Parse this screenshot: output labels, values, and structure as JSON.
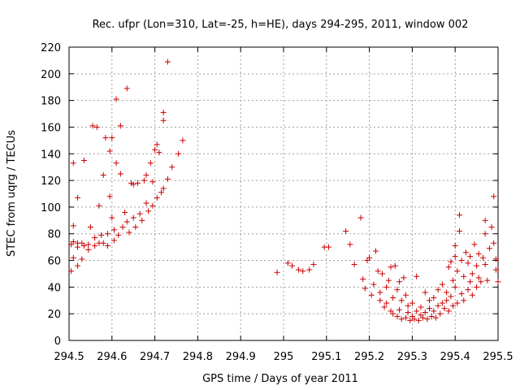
{
  "chart_data": {
    "type": "scatter",
    "title": "Rec. ufpr (Lon=310, Lat=-25, h=HE), days 294-295, 2011, window 002",
    "xlabel": "GPS time / Days of year 2011",
    "ylabel": "STEC from uqrg / TECUs",
    "xlim": [
      294.5,
      295.5
    ],
    "ylim": [
      0,
      220
    ],
    "xticks": [
      294.5,
      294.6,
      294.7,
      294.8,
      294.9,
      295,
      295.1,
      295.2,
      295.3,
      295.4,
      295.5
    ],
    "xtick_labels": [
      "294.5",
      "294.6",
      "294.7",
      "294.8",
      "294.9",
      "295",
      "295.1",
      "295.2",
      "295.3",
      "295.4",
      "295.5"
    ],
    "yticks": [
      0,
      20,
      40,
      60,
      80,
      100,
      120,
      140,
      160,
      180,
      200,
      220
    ],
    "ytick_labels": [
      "0",
      "20",
      "40",
      "60",
      "80",
      "100",
      "120",
      "140",
      "160",
      "180",
      "200",
      "220"
    ],
    "grid": true,
    "marker": "+",
    "color": "#cc0000",
    "series": [
      {
        "points": [
          [
            294.505,
            52
          ],
          [
            294.505,
            72
          ],
          [
            294.51,
            62
          ],
          [
            294.51,
            74
          ],
          [
            294.51,
            86
          ],
          [
            294.51,
            133
          ],
          [
            294.52,
            56
          ],
          [
            294.52,
            70
          ],
          [
            294.52,
            73
          ],
          [
            294.52,
            107
          ],
          [
            294.53,
            61
          ],
          [
            294.53,
            73
          ],
          [
            294.535,
            71
          ],
          [
            294.535,
            135
          ],
          [
            294.545,
            72
          ],
          [
            294.545,
            68
          ],
          [
            294.55,
            85
          ],
          [
            294.555,
            161
          ],
          [
            294.56,
            71
          ],
          [
            294.56,
            77
          ],
          [
            294.565,
            160
          ],
          [
            294.57,
            73
          ],
          [
            294.57,
            101
          ],
          [
            294.575,
            79
          ],
          [
            294.58,
            73
          ],
          [
            294.58,
            124
          ],
          [
            294.585,
            152
          ],
          [
            294.59,
            71
          ],
          [
            294.59,
            80
          ],
          [
            294.595,
            108
          ],
          [
            294.595,
            142
          ],
          [
            294.6,
            152
          ],
          [
            294.6,
            92
          ],
          [
            294.605,
            75
          ],
          [
            294.605,
            83
          ],
          [
            294.61,
            181
          ],
          [
            294.61,
            133
          ],
          [
            294.615,
            79
          ],
          [
            294.62,
            161
          ],
          [
            294.62,
            125
          ],
          [
            294.625,
            85
          ],
          [
            294.63,
            96
          ],
          [
            294.635,
            89
          ],
          [
            294.635,
            189
          ],
          [
            294.64,
            81
          ],
          [
            294.645,
            118
          ],
          [
            294.65,
            92
          ],
          [
            294.65,
            117
          ],
          [
            294.655,
            85
          ],
          [
            294.66,
            118
          ],
          [
            294.665,
            95
          ],
          [
            294.67,
            90
          ],
          [
            294.675,
            120
          ],
          [
            294.68,
            103
          ],
          [
            294.68,
            124
          ],
          [
            294.685,
            97
          ],
          [
            294.69,
            133
          ],
          [
            294.695,
            101
          ],
          [
            294.695,
            119
          ],
          [
            294.7,
            143
          ],
          [
            294.705,
            147
          ],
          [
            294.705,
            107
          ],
          [
            294.71,
            141
          ],
          [
            294.715,
            111
          ],
          [
            294.72,
            114
          ],
          [
            294.72,
            165
          ],
          [
            294.72,
            171
          ],
          [
            294.73,
            209
          ],
          [
            294.73,
            121
          ],
          [
            294.74,
            130
          ],
          [
            294.755,
            140
          ],
          [
            294.765,
            150
          ],
          [
            294.985,
            51
          ],
          [
            295.01,
            58
          ],
          [
            295.02,
            56
          ],
          [
            295.035,
            53
          ],
          [
            295.045,
            52
          ],
          [
            295.06,
            53
          ],
          [
            295.07,
            57
          ],
          [
            295.095,
            70
          ],
          [
            295.105,
            70
          ],
          [
            295.145,
            82
          ],
          [
            295.155,
            72
          ],
          [
            295.165,
            57
          ],
          [
            295.18,
            92
          ],
          [
            295.185,
            46
          ],
          [
            295.19,
            39
          ],
          [
            295.195,
            60
          ],
          [
            295.2,
            62
          ],
          [
            295.205,
            34
          ],
          [
            295.21,
            42
          ],
          [
            295.215,
            67
          ],
          [
            295.22,
            52
          ],
          [
            295.225,
            30
          ],
          [
            295.225,
            36
          ],
          [
            295.23,
            50
          ],
          [
            295.235,
            25
          ],
          [
            295.24,
            28
          ],
          [
            295.24,
            40
          ],
          [
            295.245,
            45
          ],
          [
            295.25,
            22
          ],
          [
            295.25,
            55
          ],
          [
            295.255,
            20
          ],
          [
            295.255,
            32
          ],
          [
            295.26,
            56
          ],
          [
            295.265,
            18
          ],
          [
            295.265,
            38
          ],
          [
            295.27,
            44
          ],
          [
            295.27,
            23
          ],
          [
            295.275,
            16
          ],
          [
            295.275,
            30
          ],
          [
            295.28,
            47
          ],
          [
            295.285,
            17
          ],
          [
            295.285,
            34
          ],
          [
            295.29,
            21
          ],
          [
            295.29,
            26
          ],
          [
            295.295,
            15
          ],
          [
            295.3,
            18
          ],
          [
            295.3,
            28
          ],
          [
            295.305,
            16
          ],
          [
            295.31,
            22
          ],
          [
            295.31,
            48
          ],
          [
            295.315,
            15
          ],
          [
            295.32,
            19
          ],
          [
            295.32,
            25
          ],
          [
            295.325,
            17
          ],
          [
            295.33,
            21
          ],
          [
            295.33,
            36
          ],
          [
            295.335,
            16
          ],
          [
            295.34,
            24
          ],
          [
            295.34,
            30
          ],
          [
            295.345,
            18
          ],
          [
            295.35,
            22
          ],
          [
            295.35,
            32
          ],
          [
            295.355,
            17
          ],
          [
            295.36,
            26
          ],
          [
            295.36,
            38
          ],
          [
            295.365,
            20
          ],
          [
            295.37,
            28
          ],
          [
            295.37,
            42
          ],
          [
            295.375,
            24
          ],
          [
            295.38,
            30
          ],
          [
            295.38,
            36
          ],
          [
            295.385,
            22
          ],
          [
            295.385,
            55
          ],
          [
            295.39,
            59
          ],
          [
            295.39,
            33
          ],
          [
            295.395,
            26
          ],
          [
            295.395,
            45
          ],
          [
            295.4,
            71
          ],
          [
            295.4,
            63
          ],
          [
            295.4,
            40
          ],
          [
            295.405,
            28
          ],
          [
            295.405,
            52
          ],
          [
            295.41,
            94
          ],
          [
            295.41,
            82
          ],
          [
            295.415,
            35
          ],
          [
            295.415,
            60
          ],
          [
            295.42,
            30
          ],
          [
            295.42,
            48
          ],
          [
            295.425,
            66
          ],
          [
            295.43,
            38
          ],
          [
            295.43,
            58
          ],
          [
            295.435,
            44
          ],
          [
            295.435,
            63
          ],
          [
            295.44,
            34
          ],
          [
            295.44,
            50
          ],
          [
            295.445,
            72
          ],
          [
            295.45,
            40
          ],
          [
            295.45,
            56
          ],
          [
            295.455,
            47
          ],
          [
            295.455,
            65
          ],
          [
            295.46,
            44
          ],
          [
            295.465,
            62
          ],
          [
            295.47,
            80
          ],
          [
            295.47,
            90
          ],
          [
            295.47,
            57
          ],
          [
            295.475,
            45
          ],
          [
            295.48,
            69
          ],
          [
            295.485,
            85
          ],
          [
            295.49,
            108
          ],
          [
            295.49,
            73
          ],
          [
            295.495,
            53
          ],
          [
            295.495,
            61
          ],
          [
            295.5,
            44
          ]
        ]
      }
    ]
  }
}
